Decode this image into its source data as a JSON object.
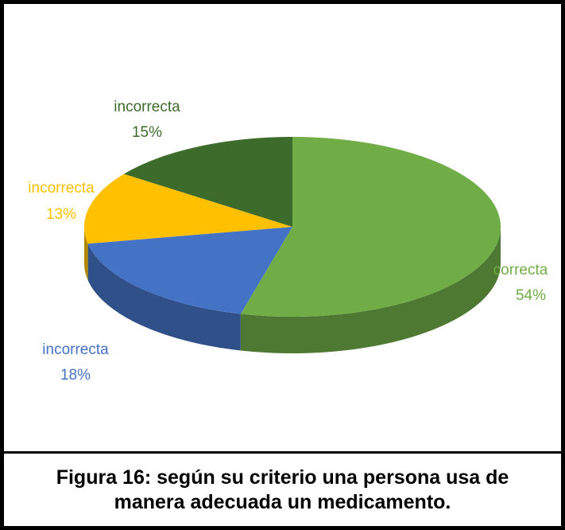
{
  "chart_data": {
    "type": "pie",
    "caption": "Figura 16: según su criterio una persona usa de manera adecuada un medicamento.",
    "categories": [
      "correcta",
      "incorrecta",
      "incorrecta",
      "incorrecta"
    ],
    "values": [
      54,
      18,
      13,
      15
    ],
    "value_labels": [
      "54%",
      "18%",
      "13%",
      "15%"
    ],
    "colors": [
      "#70ad47",
      "#4472c4",
      "#ffc000",
      "#3d6b2b"
    ]
  }
}
